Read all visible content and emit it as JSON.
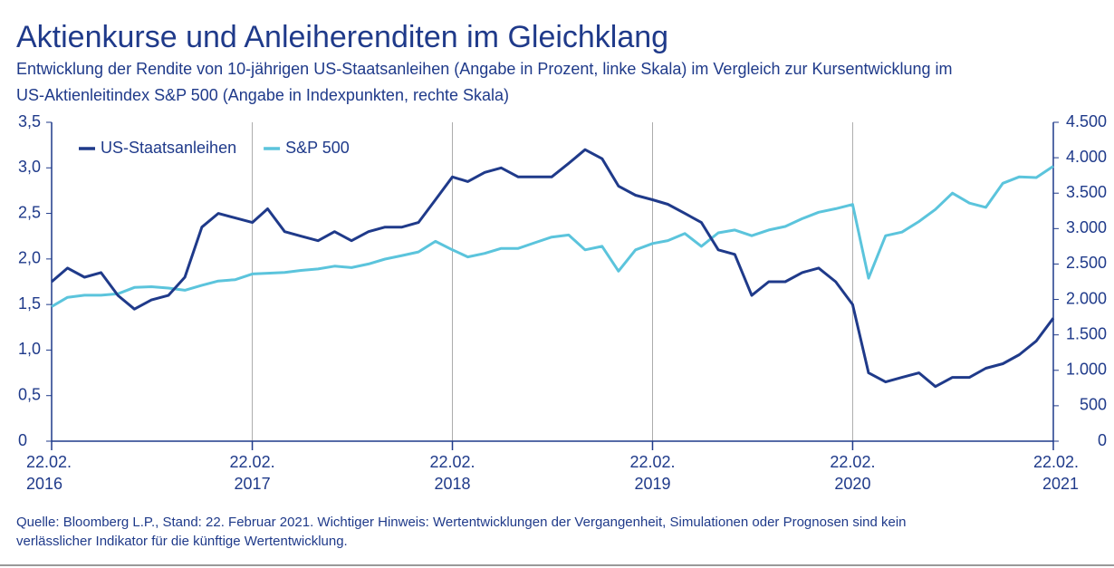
{
  "chart_data": {
    "type": "line",
    "title": "Aktienkurse und Anleiherenditen im Gleichklang",
    "subtitle": [
      "Entwicklung der Rendite von 10-jährigen US-Staatsanleihen (Angabe in Prozent, linke Skala) im Vergleich zur Kursentwicklung im",
      "US-Aktienleitindex S&P 500 (Angabe in Indexpunkten, rechte Skala)"
    ],
    "source": [
      "Quelle: Bloomberg L.P., Stand: 22. Februar 2021. Wichtiger Hinweis: Wertentwicklungen der Vergangenheit, Simulationen oder Prognosen sind kein",
      "verlässlicher Indikator für die künftige Wertentwicklung."
    ],
    "x": [
      "2016-02-22",
      "2016-03-22",
      "2016-04-22",
      "2016-05-22",
      "2016-06-22",
      "2016-07-22",
      "2016-08-22",
      "2016-09-22",
      "2016-10-22",
      "2016-11-22",
      "2016-12-22",
      "2017-01-22",
      "2017-02-22",
      "2017-03-22",
      "2017-04-22",
      "2017-05-22",
      "2017-06-22",
      "2017-07-22",
      "2017-08-22",
      "2017-09-22",
      "2017-10-22",
      "2017-11-22",
      "2017-12-22",
      "2018-01-22",
      "2018-02-22",
      "2018-03-22",
      "2018-04-22",
      "2018-05-22",
      "2018-06-22",
      "2018-07-22",
      "2018-08-22",
      "2018-09-22",
      "2018-10-22",
      "2018-11-22",
      "2018-12-22",
      "2019-01-22",
      "2019-02-22",
      "2019-03-22",
      "2019-04-22",
      "2019-05-22",
      "2019-06-22",
      "2019-07-22",
      "2019-08-22",
      "2019-09-22",
      "2019-10-22",
      "2019-11-22",
      "2019-12-22",
      "2020-01-22",
      "2020-02-22",
      "2020-03-22",
      "2020-04-22",
      "2020-05-22",
      "2020-06-22",
      "2020-07-22",
      "2020-08-22",
      "2020-09-22",
      "2020-10-22",
      "2020-11-22",
      "2020-12-22",
      "2021-01-22",
      "2021-02-22"
    ],
    "xlim": [
      "2016-02-22",
      "2021-02-22"
    ],
    "xticks": [
      {
        "value": "2016-02-22",
        "label": [
          "22.02.",
          "2016"
        ]
      },
      {
        "value": "2017-02-22",
        "label": [
          "22.02.",
          "2017"
        ]
      },
      {
        "value": "2018-02-22",
        "label": [
          "22.02.",
          "2018"
        ]
      },
      {
        "value": "2019-02-22",
        "label": [
          "22.02.",
          "2019"
        ]
      },
      {
        "value": "2020-02-22",
        "label": [
          "22.02.",
          "2020"
        ]
      },
      {
        "value": "2021-02-22",
        "label": [
          "22.02.",
          "2021"
        ]
      }
    ],
    "ylim": [
      0,
      3.5
    ],
    "yticks": [
      0,
      {
        "value": 0.5,
        "label": "0,5"
      },
      {
        "value": 1,
        "label": "1,0"
      },
      {
        "value": 1.5,
        "label": "1,5"
      },
      {
        "value": 2,
        "label": "2,0"
      },
      {
        "value": 2.5,
        "label": "2,5"
      },
      {
        "value": 3,
        "label": "3,0"
      },
      {
        "value": 3.5,
        "label": "3,5"
      }
    ],
    "y2lim": [
      0,
      4500
    ],
    "y2ticks": [
      0,
      500,
      {
        "value": 1000,
        "label": "1.000"
      },
      {
        "value": 1500,
        "label": "1.500"
      },
      {
        "value": 2000,
        "label": "2.000"
      },
      {
        "value": 2500,
        "label": "2.500"
      },
      {
        "value": 3000,
        "label": "3.000"
      },
      {
        "value": 3500,
        "label": "3.500"
      },
      {
        "value": 4000,
        "label": "4.000"
      },
      {
        "value": 4500,
        "label": "4.500"
      }
    ],
    "grid": "x",
    "legend": "top-left",
    "series": [
      {
        "name": "US-Staatsanleihen",
        "color": "#1f3a8a",
        "axis": "y",
        "values": [
          1.75,
          1.9,
          1.8,
          1.85,
          1.6,
          1.45,
          1.55,
          1.6,
          1.8,
          2.35,
          2.5,
          2.45,
          2.4,
          2.55,
          2.3,
          2.25,
          2.2,
          2.3,
          2.2,
          2.3,
          2.35,
          2.35,
          2.4,
          2.65,
          2.9,
          2.85,
          2.95,
          3.0,
          2.9,
          2.9,
          2.9,
          3.05,
          3.2,
          3.1,
          2.8,
          2.7,
          2.65,
          2.6,
          2.5,
          2.4,
          2.1,
          2.05,
          1.6,
          1.75,
          1.75,
          1.85,
          1.9,
          1.75,
          1.5,
          0.75,
          0.65,
          0.7,
          0.75,
          0.6,
          0.7,
          0.7,
          0.8,
          0.85,
          0.95,
          1.1,
          1.35
        ]
      },
      {
        "name": "S&P 500",
        "color": "#5bc4dc",
        "axis": "y2",
        "values": [
          1900,
          2030,
          2060,
          2060,
          2080,
          2170,
          2180,
          2160,
          2130,
          2200,
          2260,
          2280,
          2360,
          2370,
          2380,
          2410,
          2430,
          2470,
          2450,
          2500,
          2570,
          2620,
          2670,
          2820,
          2700,
          2600,
          2650,
          2720,
          2720,
          2800,
          2880,
          2910,
          2700,
          2750,
          2400,
          2700,
          2790,
          2830,
          2930,
          2750,
          2940,
          2980,
          2900,
          2980,
          3030,
          3140,
          3230,
          3280,
          3340,
          2300,
          2900,
          2950,
          3100,
          3270,
          3500,
          3360,
          3300,
          3640,
          3730,
          3720,
          3880
        ]
      }
    ]
  }
}
